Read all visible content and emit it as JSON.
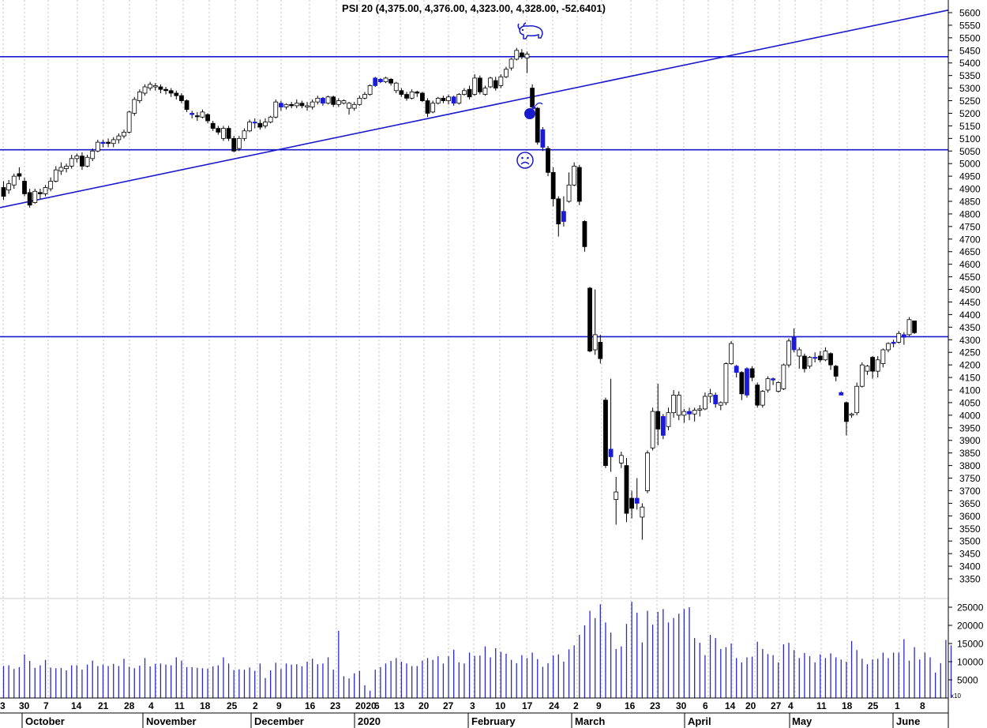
{
  "chart_data": {
    "type": "candlestick",
    "title": "PSI 20 (4,375.00, 4,376.00, 4,323.00, 4,328.00, -52.6401)",
    "price_axis": {
      "min": 3300,
      "max": 5625,
      "ticks": [
        "5600",
        "5550",
        "5500",
        "5450",
        "5400",
        "5350",
        "5300",
        "5250",
        "5200",
        "5150",
        "5100",
        "5050",
        "5000",
        "4950",
        "4900",
        "4850",
        "4800",
        "4750",
        "4700",
        "4650",
        "4600",
        "4550",
        "4500",
        "4450",
        "4400",
        "4350",
        "4300",
        "4250",
        "4200",
        "4150",
        "4100",
        "4050",
        "4000",
        "3950",
        "3900",
        "3850",
        "3800",
        "3750",
        "3700",
        "3650",
        "3600",
        "3550",
        "3500",
        "3450",
        "3400",
        "3350"
      ]
    },
    "volume_axis": {
      "min": 0,
      "max": 27000,
      "ticks": [
        "25000",
        "20000",
        "15000",
        "10000",
        "5000"
      ],
      "scale_note": "x10"
    },
    "x_axis": {
      "day_labels": [
        "3",
        "30",
        "7",
        "14",
        "21",
        "28",
        "4",
        "11",
        "18",
        "25",
        "2",
        "9",
        "16",
        "23",
        "2020",
        "6",
        "13",
        "20",
        "27",
        "3",
        "10",
        "17",
        "24",
        "2",
        "9",
        "16",
        "23",
        "30",
        "6",
        "14",
        "20",
        "27",
        "4",
        "11",
        "18",
        "25",
        "1",
        "8"
      ],
      "month_labels": [
        "October",
        "November",
        "December",
        "2020",
        "February",
        "March",
        "April",
        "May",
        "June"
      ]
    },
    "horizontal_lines": [
      5425,
      5055,
      4312
    ],
    "trendline": {
      "from": 4825,
      "to": 5610
    },
    "symbols": [
      "bull-icon",
      "bomb-icon",
      "sad-face-icon"
    ],
    "colors": {
      "up": "#ffffff",
      "down": "#000000",
      "blue_candle": "#1a1adc",
      "lines": "#1a1acc",
      "volume": "#2a2ac8"
    },
    "candles": [
      [
        4870,
        4905,
        4855,
        4930,
        "down"
      ],
      [
        4895,
        4920,
        4880,
        4935,
        "up"
      ],
      [
        4915,
        4950,
        4900,
        4960,
        "up"
      ],
      [
        4960,
        4950,
        4935,
        4985,
        "down"
      ],
      [
        4930,
        4880,
        4870,
        4945,
        "down"
      ],
      [
        4885,
        4835,
        4825,
        4900,
        "down"
      ],
      [
        4845,
        4890,
        4840,
        4900,
        "up"
      ],
      [
        4885,
        4880,
        4860,
        4900,
        "down"
      ],
      [
        4880,
        4905,
        4870,
        4915,
        "up"
      ],
      [
        4900,
        4930,
        4890,
        4945,
        "up"
      ],
      [
        4930,
        4975,
        4925,
        4990,
        "up"
      ],
      [
        4970,
        4985,
        4955,
        5005,
        "up"
      ],
      [
        4980,
        4990,
        4965,
        5000,
        "up"
      ],
      [
        4990,
        5020,
        4980,
        5035,
        "up"
      ],
      [
        5020,
        5030,
        5005,
        5040,
        "up"
      ],
      [
        5030,
        4990,
        4975,
        5045,
        "down"
      ],
      [
        4990,
        5025,
        4985,
        5035,
        "up"
      ],
      [
        5020,
        5050,
        5010,
        5060,
        "up"
      ],
      [
        5050,
        5085,
        5045,
        5095,
        "up"
      ],
      [
        5080,
        5085,
        5065,
        5095,
        "blue"
      ],
      [
        5085,
        5080,
        5065,
        5100,
        "down"
      ],
      [
        5080,
        5095,
        5065,
        5105,
        "up"
      ],
      [
        5095,
        5110,
        5080,
        5120,
        "up"
      ],
      [
        5110,
        5125,
        5100,
        5135,
        "up"
      ],
      [
        5125,
        5205,
        5120,
        5210,
        "up"
      ],
      [
        5200,
        5255,
        5190,
        5265,
        "up"
      ],
      [
        5250,
        5285,
        5240,
        5295,
        "up"
      ],
      [
        5280,
        5305,
        5270,
        5315,
        "up"
      ],
      [
        5300,
        5315,
        5290,
        5325,
        "up"
      ],
      [
        5310,
        5305,
        5290,
        5320,
        "up"
      ],
      [
        5305,
        5295,
        5280,
        5315,
        "down"
      ],
      [
        5295,
        5290,
        5275,
        5305,
        "down"
      ],
      [
        5290,
        5280,
        5265,
        5300,
        "down"
      ],
      [
        5280,
        5270,
        5255,
        5290,
        "down"
      ],
      [
        5270,
        5250,
        5240,
        5280,
        "down"
      ],
      [
        5250,
        5215,
        5205,
        5255,
        "down"
      ],
      [
        5200,
        5195,
        5180,
        5210,
        "blue"
      ],
      [
        5190,
        5190,
        5170,
        5205,
        "down"
      ],
      [
        5185,
        5205,
        5180,
        5215,
        "up"
      ],
      [
        5195,
        5170,
        5160,
        5200,
        "down"
      ],
      [
        5160,
        5140,
        5130,
        5170,
        "down"
      ],
      [
        5140,
        5125,
        5115,
        5150,
        "down"
      ],
      [
        5100,
        5140,
        5090,
        5150,
        "up"
      ],
      [
        5140,
        5100,
        5090,
        5150,
        "down"
      ],
      [
        5100,
        5050,
        5045,
        5110,
        "down"
      ],
      [
        5060,
        5100,
        5050,
        5110,
        "up"
      ],
      [
        5100,
        5130,
        5090,
        5140,
        "up"
      ],
      [
        5130,
        5165,
        5125,
        5175,
        "up"
      ],
      [
        5165,
        5165,
        5140,
        5180,
        "blue"
      ],
      [
        5160,
        5145,
        5135,
        5175,
        "down"
      ],
      [
        5150,
        5165,
        5140,
        5180,
        "up"
      ],
      [
        5165,
        5185,
        5160,
        5190,
        "up"
      ],
      [
        5185,
        5245,
        5180,
        5255,
        "up"
      ],
      [
        5240,
        5225,
        5210,
        5250,
        "blue"
      ],
      [
        5225,
        5235,
        5215,
        5240,
        "up"
      ],
      [
        5235,
        5230,
        5220,
        5245,
        "down"
      ],
      [
        5230,
        5240,
        5220,
        5255,
        "up"
      ],
      [
        5240,
        5230,
        5220,
        5250,
        "down"
      ],
      [
        5230,
        5225,
        5210,
        5245,
        "up"
      ],
      [
        5225,
        5245,
        5215,
        5255,
        "up"
      ],
      [
        5245,
        5260,
        5235,
        5270,
        "up"
      ],
      [
        5260,
        5240,
        5230,
        5265,
        "blue"
      ],
      [
        5240,
        5265,
        5235,
        5270,
        "up"
      ],
      [
        5265,
        5235,
        5225,
        5270,
        "down"
      ],
      [
        5235,
        5250,
        5225,
        5260,
        "up"
      ],
      [
        5250,
        5240,
        5235,
        5255,
        "up"
      ],
      [
        5240,
        5220,
        5195,
        5245,
        "up"
      ],
      [
        5220,
        5235,
        5210,
        5245,
        "up"
      ],
      [
        5235,
        5260,
        5230,
        5270,
        "up"
      ],
      [
        5260,
        5275,
        5255,
        5285,
        "up"
      ],
      [
        5275,
        5310,
        5270,
        5315,
        "up"
      ],
      [
        5310,
        5340,
        5305,
        5345,
        "blue"
      ],
      [
        5335,
        5325,
        5320,
        5340,
        "blue"
      ],
      [
        5325,
        5340,
        5320,
        5345,
        "up"
      ],
      [
        5335,
        5320,
        5310,
        5340,
        "down"
      ],
      [
        5320,
        5290,
        5280,
        5325,
        "up"
      ],
      [
        5290,
        5275,
        5265,
        5300,
        "down"
      ],
      [
        5275,
        5260,
        5250,
        5285,
        "down"
      ],
      [
        5260,
        5285,
        5255,
        5295,
        "up"
      ],
      [
        5285,
        5280,
        5265,
        5290,
        "down"
      ],
      [
        5280,
        5250,
        5245,
        5285,
        "down"
      ],
      [
        5250,
        5200,
        5185,
        5260,
        "down"
      ],
      [
        5205,
        5240,
        5200,
        5250,
        "up"
      ],
      [
        5240,
        5260,
        5235,
        5265,
        "up"
      ],
      [
        5260,
        5250,
        5240,
        5270,
        "down"
      ],
      [
        5250,
        5265,
        5235,
        5275,
        "up"
      ],
      [
        5265,
        5240,
        5230,
        5270,
        "blue"
      ],
      [
        5240,
        5275,
        5235,
        5280,
        "up"
      ],
      [
        5275,
        5290,
        5270,
        5300,
        "up"
      ],
      [
        5295,
        5265,
        5255,
        5310,
        "down"
      ],
      [
        5275,
        5340,
        5270,
        5355,
        "up"
      ],
      [
        5340,
        5285,
        5275,
        5350,
        "down"
      ],
      [
        5275,
        5300,
        5270,
        5310,
        "up"
      ],
      [
        5305,
        5340,
        5300,
        5345,
        "up"
      ],
      [
        5330,
        5300,
        5290,
        5345,
        "down"
      ],
      [
        5310,
        5345,
        5300,
        5355,
        "up"
      ],
      [
        5345,
        5375,
        5340,
        5385,
        "up"
      ],
      [
        5380,
        5415,
        5370,
        5420,
        "up"
      ],
      [
        5415,
        5450,
        5410,
        5460,
        "up"
      ],
      [
        5440,
        5425,
        5415,
        5455,
        "down"
      ],
      [
        5435,
        5420,
        5360,
        5445,
        "up"
      ],
      [
        5300,
        5225,
        5215,
        5315,
        "down"
      ],
      [
        5220,
        5085,
        5075,
        5225,
        "down"
      ],
      [
        5135,
        5065,
        5050,
        5145,
        "blue"
      ],
      [
        5060,
        4965,
        4950,
        5070,
        "down"
      ],
      [
        4965,
        4860,
        4830,
        4985,
        "down"
      ],
      [
        4860,
        4760,
        4710,
        4870,
        "down"
      ],
      [
        4770,
        4810,
        4750,
        4870,
        "blue"
      ],
      [
        4850,
        4915,
        4845,
        4965,
        "up"
      ],
      [
        4915,
        4990,
        4910,
        5005,
        "up"
      ],
      [
        4985,
        4850,
        4835,
        4995,
        "down"
      ],
      [
        4770,
        4670,
        4650,
        4775,
        "down"
      ],
      [
        4505,
        4255,
        4250,
        4510,
        "down"
      ],
      [
        4320,
        4260,
        4240,
        4500,
        "up"
      ],
      [
        4290,
        4225,
        4205,
        4320,
        "down"
      ],
      [
        4060,
        3800,
        3790,
        4070,
        "down"
      ],
      [
        3865,
        3835,
        3775,
        4145,
        "blue"
      ],
      [
        3665,
        3695,
        3565,
        3755,
        "up"
      ],
      [
        3810,
        3840,
        3790,
        3855,
        "up"
      ],
      [
        3800,
        3610,
        3575,
        3830,
        "down"
      ],
      [
        3670,
        3630,
        3590,
        3700,
        "down"
      ],
      [
        3650,
        3670,
        3625,
        3750,
        "blue"
      ],
      [
        3595,
        3635,
        3505,
        3650,
        "up"
      ],
      [
        3700,
        3850,
        3690,
        3860,
        "up"
      ],
      [
        3870,
        4015,
        3860,
        4030,
        "up"
      ],
      [
        4015,
        3945,
        3880,
        4125,
        "down"
      ],
      [
        3920,
        3995,
        3905,
        4005,
        "blue"
      ],
      [
        3955,
        4010,
        3940,
        4030,
        "up"
      ],
      [
        4010,
        4080,
        3990,
        4100,
        "up"
      ],
      [
        4080,
        4000,
        3980,
        4095,
        "up"
      ],
      [
        4000,
        4015,
        3970,
        4025,
        "up"
      ],
      [
        4015,
        4005,
        3980,
        4030,
        "blue"
      ],
      [
        4005,
        4020,
        3975,
        4030,
        "up"
      ],
      [
        4020,
        4025,
        3995,
        4040,
        "up"
      ],
      [
        4025,
        4075,
        4020,
        4090,
        "up"
      ],
      [
        4075,
        4085,
        4050,
        4105,
        "up"
      ],
      [
        4080,
        4045,
        4030,
        4090,
        "blue"
      ],
      [
        4040,
        4050,
        4020,
        4055,
        "up"
      ],
      [
        4050,
        4205,
        4040,
        4210,
        "up"
      ],
      [
        4205,
        4285,
        4200,
        4295,
        "up"
      ],
      [
        4195,
        4170,
        4150,
        4200,
        "blue"
      ],
      [
        4170,
        4085,
        4060,
        4175,
        "down"
      ],
      [
        4080,
        4185,
        4070,
        4190,
        "blue"
      ],
      [
        4185,
        4150,
        4135,
        4195,
        "down"
      ],
      [
        4120,
        4040,
        4030,
        4130,
        "down"
      ],
      [
        4040,
        4095,
        4030,
        4100,
        "up"
      ],
      [
        4100,
        4145,
        4090,
        4155,
        "up"
      ],
      [
        4140,
        4145,
        4120,
        4150,
        "blue"
      ],
      [
        4130,
        4095,
        4090,
        4135,
        "up"
      ],
      [
        4105,
        4200,
        4100,
        4205,
        "up"
      ],
      [
        4200,
        4295,
        4190,
        4305,
        "up"
      ],
      [
        4310,
        4260,
        4250,
        4345,
        "blue"
      ],
      [
        4260,
        4235,
        4185,
        4270,
        "up"
      ],
      [
        4235,
        4185,
        4170,
        4245,
        "down"
      ],
      [
        4195,
        4230,
        4185,
        4235,
        "up"
      ],
      [
        4230,
        4230,
        4210,
        4250,
        "blue"
      ],
      [
        4235,
        4220,
        4210,
        4255,
        "down"
      ],
      [
        4220,
        4255,
        4215,
        4270,
        "up"
      ],
      [
        4245,
        4200,
        4180,
        4250,
        "down"
      ],
      [
        4195,
        4155,
        4135,
        4200,
        "down"
      ],
      [
        4090,
        4080,
        4080,
        4095,
        "blue"
      ],
      [
        4050,
        3975,
        3920,
        4055,
        "down"
      ],
      [
        4005,
        4000,
        3990,
        4010,
        "up"
      ],
      [
        4010,
        4115,
        4000,
        4130,
        "up"
      ],
      [
        4115,
        4200,
        4110,
        4210,
        "up"
      ],
      [
        4195,
        4175,
        4160,
        4200,
        "up"
      ],
      [
        4175,
        4230,
        4145,
        4235,
        "down"
      ],
      [
        4175,
        4220,
        4150,
        4235,
        "up"
      ],
      [
        4205,
        4260,
        4190,
        4265,
        "up"
      ],
      [
        4260,
        4285,
        4250,
        4290,
        "up"
      ],
      [
        4285,
        4290,
        4270,
        4300,
        "blue"
      ],
      [
        4290,
        4325,
        4285,
        4335,
        "up"
      ],
      [
        4320,
        4310,
        4280,
        4330,
        "blue"
      ],
      [
        4320,
        4380,
        4315,
        4390,
        "up"
      ],
      [
        4375,
        4328,
        4323,
        4376,
        "down"
      ]
    ],
    "volume": [
      8800,
      9000,
      8000,
      8500,
      12000,
      10200,
      8300,
      9000,
      10500,
      8400,
      8200,
      8300,
      7600,
      9000,
      9000,
      7800,
      9200,
      10300,
      8800,
      9200,
      8800,
      9400,
      8800,
      10800,
      8600,
      8200,
      8900,
      11000,
      8700,
      9400,
      9500,
      9200,
      9000,
      11200,
      10300,
      8500,
      8500,
      8300,
      8200,
      8100,
      8700,
      9000,
      11200,
      9500,
      7700,
      7900,
      7800,
      8400,
      7500,
      9500,
      5500,
      7600,
      9700,
      8000,
      9500,
      9200,
      9300,
      8700,
      10000,
      10800,
      9300,
      9500,
      11200,
      7800,
      18500,
      6000,
      5400,
      6800,
      7500,
      3500,
      2000,
      7800,
      8500,
      9500,
      10200,
      11000,
      10000,
      9500,
      8800,
      8800,
      10300,
      11000,
      10500,
      11500,
      9500,
      11500,
      13300,
      9800,
      9500,
      12500,
      11600,
      11700,
      14200,
      11200,
      13700,
      12700,
      12200,
      10500,
      9600,
      11800,
      11000,
      12500,
      10700,
      8600,
      9600,
      11700,
      12000,
      10000,
      13400,
      14500,
      17400,
      20000,
      24000,
      22000,
      25800,
      20800,
      18000,
      13500,
      14200,
      20400,
      26500,
      23500,
      15300,
      24000,
      20200,
      23700,
      24500,
      20800,
      22000,
      23200,
      24500,
      25000,
      16500,
      15200,
      11800,
      17400,
      16500,
      13500,
      14000,
      15000,
      11000,
      9800,
      11200,
      11400,
      15500,
      13500,
      12100,
      11800,
      9800,
      14800,
      15200,
      13200,
      11000,
      12400,
      11500,
      9800,
      12000,
      11000,
      12300,
      11200,
      10600,
      10000,
      15700,
      13200,
      10800,
      9300,
      10600,
      10800,
      12500,
      11000,
      12500,
      12500,
      16200,
      10300,
      14000,
      10600,
      12500,
      11200,
      7000,
      9600,
      16000,
      14500
    ]
  }
}
